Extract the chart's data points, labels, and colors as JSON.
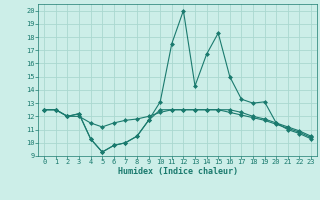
{
  "xlabel": "Humidex (Indice chaleur)",
  "x": [
    0,
    1,
    2,
    3,
    4,
    5,
    6,
    7,
    8,
    9,
    10,
    11,
    12,
    13,
    14,
    15,
    16,
    17,
    18,
    19,
    20,
    21,
    22,
    23
  ],
  "line1": [
    12.5,
    12.5,
    12.0,
    12.2,
    10.3,
    9.3,
    9.8,
    10.0,
    10.5,
    11.7,
    13.1,
    17.5,
    20.0,
    14.3,
    16.7,
    18.3,
    15.0,
    13.3,
    13.0,
    13.1,
    11.5,
    11.0,
    10.7,
    10.3
  ],
  "line2": [
    12.5,
    12.5,
    12.0,
    12.2,
    10.3,
    9.3,
    9.8,
    10.0,
    10.5,
    11.7,
    12.5,
    12.5,
    12.5,
    12.5,
    12.5,
    12.5,
    12.5,
    12.3,
    12.0,
    11.8,
    11.5,
    11.2,
    10.9,
    10.5
  ],
  "line3": [
    12.5,
    12.5,
    12.0,
    12.0,
    11.5,
    11.2,
    11.5,
    11.7,
    11.8,
    12.0,
    12.3,
    12.5,
    12.5,
    12.5,
    12.5,
    12.5,
    12.3,
    12.1,
    11.9,
    11.7,
    11.4,
    11.1,
    10.8,
    10.4
  ],
  "line_color": "#1a7a6e",
  "bg_color": "#cceee8",
  "grid_color": "#aad8d0",
  "ylim": [
    9,
    20.5
  ],
  "xlim": [
    -0.5,
    23.5
  ],
  "yticks": [
    9,
    10,
    11,
    12,
    13,
    14,
    15,
    16,
    17,
    18,
    19,
    20
  ],
  "xticks": [
    0,
    1,
    2,
    3,
    4,
    5,
    6,
    7,
    8,
    9,
    10,
    11,
    12,
    13,
    14,
    15,
    16,
    17,
    18,
    19,
    20,
    21,
    22,
    23
  ],
  "tick_fontsize": 5.0,
  "xlabel_fontsize": 6.0
}
